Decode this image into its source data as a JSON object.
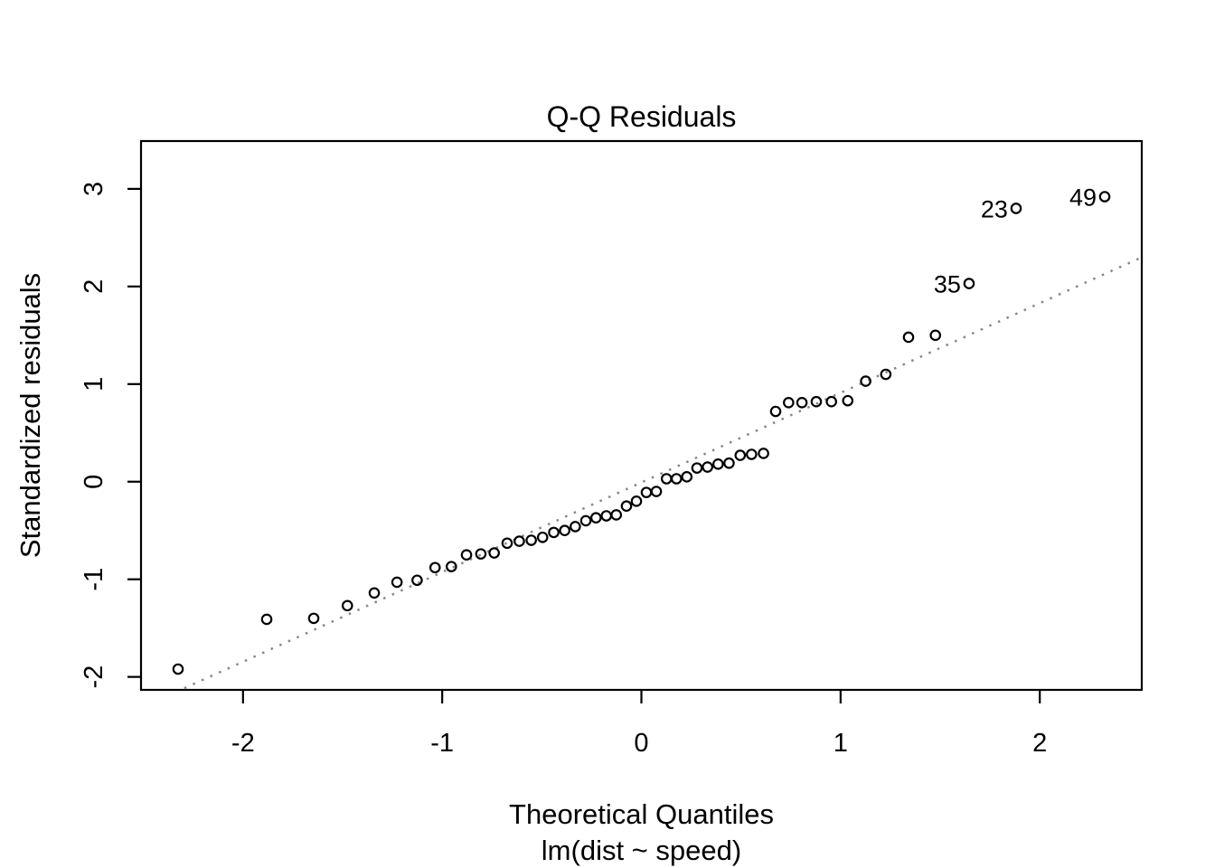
{
  "figure": {
    "background": "#ffffff",
    "axis_color": "#000000",
    "text_color": "#000000"
  },
  "chart_data": {
    "type": "scatter",
    "title": "Q-Q Residuals",
    "xlabel": "Theoretical Quantiles",
    "xlabel_secondary": "lm(dist ~ speed)",
    "ylabel": "Standardized residuals",
    "grid": false,
    "xlim": [
      -2.512,
      2.512
    ],
    "ylim": [
      -2.133,
      3.49
    ],
    "x_ticks": [
      -2,
      -1,
      0,
      1,
      2
    ],
    "y_ticks": [
      -2,
      -1,
      0,
      1,
      2,
      3
    ],
    "marker": {
      "shape": "open-circle",
      "color": "#000000"
    },
    "reference_line": {
      "type": "qqline",
      "style": "dotted",
      "color": "#878787",
      "slope": 0.9185,
      "intercept": -0.008
    },
    "points": [
      [
        -2.326,
        -1.92
      ],
      [
        -1.881,
        -1.41
      ],
      [
        -1.645,
        -1.4
      ],
      [
        -1.476,
        -1.27
      ],
      [
        -1.341,
        -1.14
      ],
      [
        -1.227,
        -1.03
      ],
      [
        -1.126,
        -1.01
      ],
      [
        -1.036,
        -0.88
      ],
      [
        -0.954,
        -0.87
      ],
      [
        -0.878,
        -0.75
      ],
      [
        -0.806,
        -0.74
      ],
      [
        -0.739,
        -0.73
      ],
      [
        -0.674,
        -0.63
      ],
      [
        -0.613,
        -0.61
      ],
      [
        -0.553,
        -0.6
      ],
      [
        -0.496,
        -0.57
      ],
      [
        -0.44,
        -0.52
      ],
      [
        -0.385,
        -0.5
      ],
      [
        -0.332,
        -0.46
      ],
      [
        -0.279,
        -0.4
      ],
      [
        -0.228,
        -0.37
      ],
      [
        -0.176,
        -0.35
      ],
      [
        -0.126,
        -0.34
      ],
      [
        -0.075,
        -0.25
      ],
      [
        -0.025,
        -0.2
      ],
      [
        0.025,
        -0.11
      ],
      [
        0.075,
        -0.1
      ],
      [
        0.126,
        0.03
      ],
      [
        0.176,
        0.03
      ],
      [
        0.228,
        0.05
      ],
      [
        0.279,
        0.14
      ],
      [
        0.332,
        0.15
      ],
      [
        0.385,
        0.18
      ],
      [
        0.44,
        0.19
      ],
      [
        0.496,
        0.27
      ],
      [
        0.553,
        0.28
      ],
      [
        0.613,
        0.29
      ],
      [
        0.674,
        0.72
      ],
      [
        0.739,
        0.81
      ],
      [
        0.806,
        0.81
      ],
      [
        0.878,
        0.82
      ],
      [
        0.954,
        0.82
      ],
      [
        1.036,
        0.83
      ],
      [
        1.126,
        1.03
      ],
      [
        1.227,
        1.1
      ],
      [
        1.341,
        1.48
      ],
      [
        1.476,
        1.5
      ],
      [
        1.645,
        2.03
      ],
      [
        1.881,
        2.8
      ],
      [
        2.326,
        2.92
      ]
    ],
    "labeled_points": [
      {
        "label": "35",
        "x": 1.645,
        "y": 2.03
      },
      {
        "label": "23",
        "x": 1.881,
        "y": 2.8
      },
      {
        "label": "49",
        "x": 2.326,
        "y": 2.92
      }
    ]
  }
}
